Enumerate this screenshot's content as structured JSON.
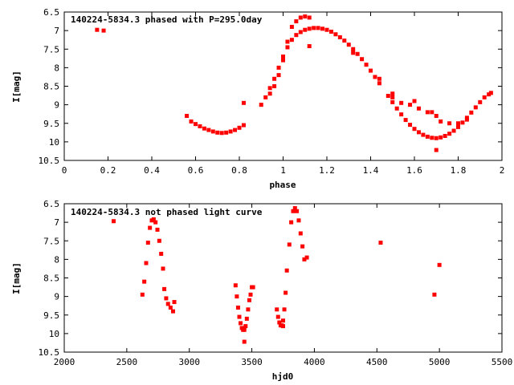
{
  "chart_data": [
    {
      "type": "scatter",
      "title": "140224-5834.3 phased with P=295.0day",
      "xlabel": "phase",
      "ylabel": "I[mag]",
      "xlim": [
        0,
        2
      ],
      "ylim": [
        6.5,
        10.5
      ],
      "y_inverted": true,
      "x_ticks": [
        0,
        0.2,
        0.4,
        0.6,
        0.8,
        1,
        1.2,
        1.4,
        1.6,
        1.8,
        2
      ],
      "x_tick_labels": [
        "0",
        "0.2",
        "0.4",
        "0.6",
        "0.8",
        "1",
        "1.2",
        "1.4",
        "1.6",
        "1.8",
        "2"
      ],
      "y_ticks": [
        6.5,
        7,
        7.5,
        8,
        8.5,
        9,
        9.5,
        10,
        10.5
      ],
      "y_tick_labels": [
        "6.5",
        "7",
        "7.5",
        "8",
        "8.5",
        "9",
        "9.5",
        "10",
        "10.5"
      ],
      "grid": false,
      "marker_color": "#ff0000",
      "series": [
        {
          "x": [
            0.15,
            0.18,
            0.56,
            0.58,
            0.6,
            0.62,
            0.64,
            0.66,
            0.68,
            0.7,
            0.72,
            0.74,
            0.76,
            0.78,
            0.8,
            0.82,
            0.9,
            0.92,
            0.94,
            0.96,
            0.98,
            1.0,
            1.02,
            1.04,
            1.06,
            1.08,
            1.1,
            1.12,
            1.14,
            1.16,
            1.18,
            1.2,
            1.22,
            1.24,
            1.26,
            1.28,
            1.3,
            1.32,
            1.34,
            1.36,
            1.38,
            1.4,
            1.42,
            1.44,
            1.48,
            1.5,
            1.52,
            1.54,
            1.56,
            1.58,
            1.6,
            1.62,
            1.64,
            1.66,
            1.68,
            1.7,
            1.72,
            1.74,
            1.76,
            1.78,
            1.8,
            1.82,
            1.84,
            1.86,
            1.88,
            1.9,
            1.92,
            1.94,
            1.95
          ],
          "y": [
            6.98,
            7.0,
            9.3,
            9.45,
            9.52,
            9.58,
            9.64,
            9.68,
            9.72,
            9.75,
            9.76,
            9.75,
            9.72,
            9.68,
            9.62,
            9.55,
            9.0,
            8.8,
            8.55,
            8.3,
            8.0,
            7.7,
            7.45,
            7.25,
            7.12,
            7.04,
            6.98,
            6.95,
            6.93,
            6.93,
            6.95,
            6.98,
            7.03,
            7.1,
            7.18,
            7.27,
            7.38,
            7.5,
            7.63,
            7.77,
            7.92,
            8.08,
            8.25,
            8.42,
            8.76,
            8.93,
            9.1,
            9.26,
            9.41,
            9.54,
            9.65,
            9.74,
            9.81,
            9.86,
            9.89,
            9.9,
            9.88,
            9.84,
            9.78,
            9.7,
            9.6,
            9.48,
            9.35,
            9.21,
            9.07,
            8.93,
            8.8,
            8.72,
            8.68
          ]
        },
        {
          "x": [
            0.94,
            0.96,
            0.98,
            1.0,
            1.02,
            1.04,
            1.06,
            1.08,
            1.1,
            1.12,
            1.5,
            1.54,
            1.58,
            1.62,
            1.66,
            1.7,
            1.72,
            1.76,
            1.8,
            1.84,
            1.5,
            1.6,
            1.68,
            1.7,
            1.12,
            0.82,
            1.32,
            1.44
          ],
          "y": [
            8.7,
            8.5,
            8.2,
            7.8,
            7.3,
            6.9,
            6.75,
            6.65,
            6.62,
            6.65,
            8.8,
            8.95,
            9.0,
            9.1,
            9.2,
            9.3,
            9.45,
            9.5,
            9.5,
            9.4,
            8.7,
            8.9,
            9.2,
            10.22,
            7.42,
            8.95,
            7.6,
            8.3
          ]
        }
      ]
    },
    {
      "type": "scatter",
      "title": "140224-5834.3 not phased light curve",
      "xlabel": "hjd0",
      "ylabel": "I[mag]",
      "xlim": [
        2000,
        5500
      ],
      "ylim": [
        6.5,
        10.5
      ],
      "y_inverted": true,
      "x_ticks": [
        2000,
        2500,
        3000,
        3500,
        4000,
        4500,
        5000,
        5500
      ],
      "x_tick_labels": [
        "2000",
        "2500",
        "3000",
        "3500",
        "4000",
        "4500",
        "5000",
        "5500"
      ],
      "y_ticks": [
        6.5,
        7,
        7.5,
        8,
        8.5,
        9,
        9.5,
        10,
        10.5
      ],
      "y_tick_labels": [
        "6.5",
        "7",
        "7.5",
        "8",
        "8.5",
        "9",
        "9.5",
        "10",
        "10.5"
      ],
      "grid": false,
      "marker_color": "#ff0000",
      "series": [
        {
          "x": [
            2395,
            2625,
            2640,
            2655,
            2670,
            2685,
            2700,
            2715,
            2730,
            2745,
            2760,
            2775,
            2790,
            2800,
            2815,
            2830,
            2850,
            2870,
            2880,
            3370,
            3380,
            3390,
            3400,
            3410,
            3420,
            3430,
            3440,
            3450,
            3460,
            3470,
            3480,
            3490,
            3500,
            3510,
            3700,
            3710,
            3720,
            3730,
            3740,
            3750,
            3760,
            3770,
            3780,
            3800,
            3815,
            3830,
            3845,
            3860,
            3875,
            3890,
            3905,
            3920,
            3940,
            4530,
            4960,
            5000
          ],
          "y": [
            6.97,
            8.95,
            8.6,
            8.1,
            7.55,
            7.15,
            6.95,
            6.92,
            7.0,
            7.2,
            7.5,
            7.85,
            8.25,
            8.8,
            9.05,
            9.2,
            9.3,
            9.4,
            9.15,
            8.7,
            9.0,
            9.3,
            9.55,
            9.72,
            9.85,
            9.9,
            9.9,
            9.8,
            9.6,
            9.35,
            9.1,
            8.95,
            8.75,
            8.75,
            9.35,
            9.55,
            9.7,
            9.78,
            9.78,
            9.65,
            9.35,
            8.9,
            8.3,
            7.6,
            7.0,
            6.7,
            6.62,
            6.7,
            6.95,
            7.3,
            7.65,
            8.0,
            7.95,
            7.55,
            8.95,
            8.15
          ]
        },
        {
          "x": [
            3440,
            3750
          ],
          "y": [
            10.22,
            9.8
          ]
        }
      ]
    }
  ]
}
